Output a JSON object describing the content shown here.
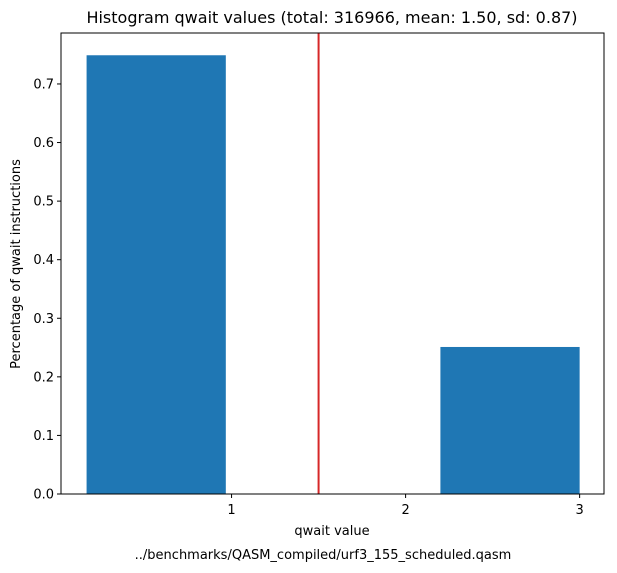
{
  "chart_data": {
    "type": "bar",
    "title": "Histogram qwait values (total: 316966, mean: 1.50, sd: 0.87)",
    "xlabel": "qwait value",
    "ylabel": "Percentage of qwait instructions",
    "footer": "../benchmarks/QASM_compiled/urf3_155_scheduled.qasm",
    "xlim": [
      0.02,
      3.14
    ],
    "ylim": [
      0,
      0.787
    ],
    "x_ticks": [
      1,
      2,
      3
    ],
    "x_tick_labels": [
      "1",
      "2",
      "3"
    ],
    "y_ticks": [
      0.0,
      0.1,
      0.2,
      0.3,
      0.4,
      0.5,
      0.6,
      0.7
    ],
    "y_tick_labels": [
      "0.0",
      "0.1",
      "0.2",
      "0.3",
      "0.4",
      "0.5",
      "0.6",
      "0.7"
    ],
    "bars": [
      {
        "x_start": 0.167,
        "x_end": 0.967,
        "value": 0.749
      },
      {
        "x_start": 2.2,
        "x_end": 3.0,
        "value": 0.251
      }
    ],
    "mean_line": {
      "x": 1.5,
      "color": "#d62728"
    },
    "bar_color": "#1f77b4",
    "grid": false
  }
}
